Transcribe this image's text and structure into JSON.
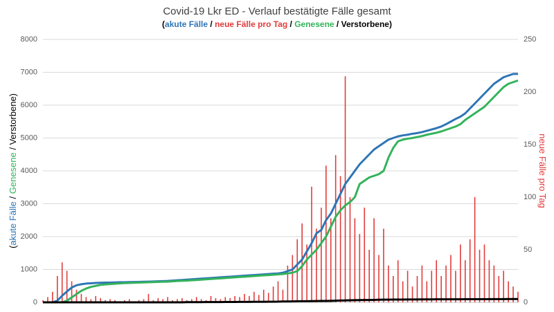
{
  "chart_data": {
    "type": "bar_line",
    "title": "Covid-19 Lkr ED - Verlauf bestätigte Fälle gesamt",
    "open": "(",
    "close": ")",
    "separator": " / ",
    "categories": [
      null,
      null,
      null,
      null,
      null,
      null,
      null,
      null,
      null,
      null,
      null,
      null,
      null,
      null,
      null,
      null,
      null,
      null,
      null,
      null,
      null,
      null,
      null,
      null,
      null,
      null,
      null,
      null,
      null,
      null,
      null,
      null,
      null,
      null,
      null,
      null,
      null,
      null,
      null,
      null,
      null,
      null,
      null,
      null,
      null,
      null,
      null,
      null,
      null,
      null,
      null,
      null,
      null,
      null,
      null,
      null,
      null,
      null,
      null,
      null,
      null,
      null,
      null,
      null,
      null,
      null,
      null,
      null,
      null,
      null,
      null,
      null,
      null,
      null,
      null,
      null,
      null,
      null,
      null,
      null,
      null,
      null,
      null,
      null,
      null,
      null,
      null,
      null,
      null,
      null,
      null,
      null,
      null,
      null,
      null,
      null,
      null,
      null,
      null,
      null
    ],
    "ylim": [
      0,
      8000
    ],
    "yticks": [
      0,
      1000,
      2000,
      3000,
      4000,
      5000,
      6000,
      7000,
      8000
    ],
    "y2lim": [
      0,
      250
    ],
    "y2ticks": [
      0,
      50,
      100,
      150,
      200,
      250
    ],
    "grid": true,
    "series": [
      {
        "name": "akute Fälle",
        "color": "#2e75b6",
        "kind": "line",
        "values": [
          0,
          0,
          0,
          50,
          200,
          330,
          450,
          520,
          550,
          570,
          580,
          590,
          595,
          600,
          600,
          605,
          610,
          610,
          615,
          618,
          620,
          625,
          630,
          635,
          640,
          645,
          650,
          660,
          670,
          680,
          690,
          700,
          710,
          720,
          730,
          740,
          750,
          760,
          770,
          780,
          790,
          800,
          810,
          820,
          830,
          840,
          850,
          860,
          870,
          880,
          900,
          950,
          1000,
          1150,
          1300,
          1550,
          1800,
          2100,
          2200,
          2500,
          2700,
          3000,
          3300,
          3600,
          3800,
          4000,
          4200,
          4350,
          4500,
          4650,
          4750,
          4850,
          4950,
          5000,
          5050,
          5080,
          5100,
          5130,
          5150,
          5180,
          5220,
          5260,
          5300,
          5350,
          5420,
          5500,
          5580,
          5650,
          5750,
          5900,
          6050,
          6200,
          6350,
          6500,
          6650,
          6750,
          6850,
          6900,
          6950,
          6950
        ]
      },
      {
        "name": "neue Fälle pro Tag",
        "color": "#e03c3c",
        "kind": "bar",
        "axis": "y2",
        "values": [
          2,
          5,
          10,
          25,
          38,
          30,
          20,
          12,
          8,
          5,
          3,
          6,
          4,
          2,
          3,
          2,
          1,
          2,
          3,
          1,
          2,
          3,
          8,
          2,
          4,
          3,
          5,
          2,
          3,
          4,
          2,
          3,
          5,
          3,
          2,
          6,
          4,
          3,
          5,
          4,
          6,
          5,
          8,
          6,
          10,
          7,
          12,
          9,
          15,
          20,
          12,
          35,
          45,
          60,
          75,
          55,
          110,
          70,
          90,
          130,
          80,
          140,
          120,
          215,
          100,
          80,
          65,
          90,
          50,
          80,
          45,
          70,
          35,
          25,
          40,
          20,
          30,
          15,
          25,
          35,
          20,
          30,
          40,
          25,
          35,
          45,
          30,
          55,
          40,
          60,
          100,
          50,
          55,
          40,
          35,
          25,
          30,
          20,
          15,
          10
        ]
      },
      {
        "name": "Genesene",
        "color": "#33b35a",
        "kind": "line",
        "values": [
          0,
          0,
          0,
          0,
          0,
          50,
          150,
          250,
          350,
          420,
          470,
          500,
          530,
          545,
          555,
          565,
          575,
          585,
          590,
          595,
          600,
          605,
          610,
          615,
          620,
          625,
          630,
          640,
          650,
          655,
          660,
          670,
          680,
          690,
          700,
          710,
          720,
          730,
          740,
          750,
          760,
          770,
          780,
          790,
          800,
          810,
          820,
          830,
          840,
          850,
          860,
          880,
          900,
          950,
          1100,
          1300,
          1450,
          1600,
          1800,
          2000,
          2300,
          2600,
          2800,
          2950,
          3050,
          3200,
          3600,
          3700,
          3800,
          3850,
          3900,
          4000,
          4400,
          4700,
          4900,
          4950,
          4980,
          5000,
          5030,
          5060,
          5100,
          5130,
          5160,
          5200,
          5250,
          5300,
          5350,
          5420,
          5550,
          5650,
          5750,
          5850,
          5950,
          6100,
          6250,
          6400,
          6550,
          6650,
          6700,
          6750
        ]
      },
      {
        "name": "Verstorbene",
        "color": "#000000",
        "kind": "line",
        "values": [
          0,
          0,
          0,
          0,
          0,
          0,
          0,
          0,
          0,
          0,
          0,
          0,
          0,
          0,
          0,
          0,
          0,
          0,
          0,
          0,
          0,
          0,
          0,
          0,
          0,
          0,
          0,
          0,
          0,
          0,
          5,
          5,
          6,
          6,
          7,
          8,
          8,
          9,
          10,
          10,
          11,
          12,
          13,
          14,
          15,
          16,
          17,
          18,
          19,
          20,
          25,
          27,
          29,
          31,
          33,
          35,
          37,
          39,
          41,
          43,
          45,
          50,
          55,
          58,
          62,
          65,
          68,
          70,
          72,
          75,
          80,
          81,
          82,
          83,
          84,
          85,
          86,
          87,
          88,
          89,
          90,
          90,
          91,
          91,
          92,
          92,
          93,
          93,
          94,
          94,
          95,
          95,
          96,
          97,
          97,
          98,
          98,
          99,
          100,
          100
        ]
      }
    ]
  }
}
